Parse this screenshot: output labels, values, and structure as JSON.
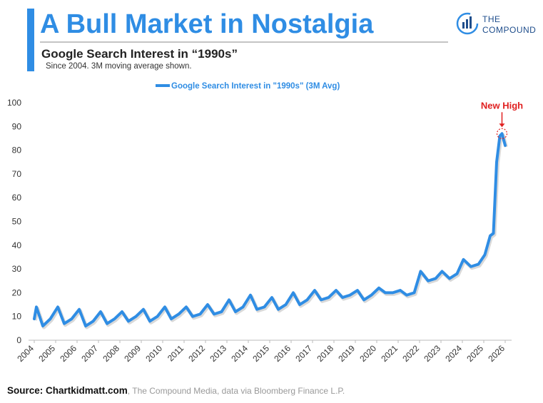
{
  "chart_data": {
    "type": "line",
    "title": "A Bull Market in Nostalgia",
    "subtitle": "Google Search Interest in “1990s”",
    "note": "Since 2004. 3M moving average shown.",
    "annotation": "New High",
    "x": [
      2004.0,
      2004.1,
      2004.4,
      2004.75,
      2005.1,
      2005.4,
      2005.75,
      2006.1,
      2006.4,
      2006.75,
      2007.1,
      2007.4,
      2007.75,
      2008.1,
      2008.4,
      2008.75,
      2009.1,
      2009.4,
      2009.75,
      2010.1,
      2010.4,
      2010.75,
      2011.1,
      2011.4,
      2011.75,
      2012.1,
      2012.4,
      2012.75,
      2013.1,
      2013.4,
      2013.75,
      2014.1,
      2014.4,
      2014.75,
      2015.1,
      2015.4,
      2015.75,
      2016.1,
      2016.4,
      2016.75,
      2017.1,
      2017.4,
      2017.75,
      2018.1,
      2018.4,
      2018.75,
      2019.1,
      2019.4,
      2019.75,
      2020.1,
      2020.4,
      2020.75,
      2021.1,
      2021.4,
      2021.75,
      2022.05,
      2022.4,
      2022.75,
      2023.05,
      2023.4,
      2023.75,
      2024.05,
      2024.4,
      2024.75,
      2025.05,
      2025.3,
      2025.45,
      2025.6,
      2025.75,
      2025.85,
      2026.0
    ],
    "series": [
      {
        "name": "Google Search Interest in \"1990s\" (3M Avg)",
        "color": "#2f8de4",
        "values": [
          9,
          14,
          6,
          9,
          14,
          7,
          9,
          13,
          6,
          8,
          12,
          7,
          9,
          12,
          8,
          10,
          13,
          8,
          10,
          14,
          9,
          11,
          14,
          10,
          11,
          15,
          11,
          12,
          17,
          12,
          14,
          19,
          13,
          14,
          18,
          13,
          15,
          20,
          15,
          17,
          21,
          17,
          18,
          21,
          18,
          19,
          21,
          17,
          19,
          22,
          20,
          20,
          21,
          19,
          20,
          29,
          25,
          26,
          29,
          26,
          28,
          34,
          31,
          32,
          36,
          44,
          45,
          75,
          86,
          87,
          82
        ]
      }
    ],
    "xlim": [
      2003.8,
      2026.3
    ],
    "xticks": [
      {
        "value": 2004,
        "label": "2004"
      },
      {
        "value": 2005,
        "label": "2005"
      },
      {
        "value": 2006,
        "label": "2006"
      },
      {
        "value": 2007,
        "label": "2007"
      },
      {
        "value": 2008,
        "label": "2008"
      },
      {
        "value": 2009,
        "label": "2009"
      },
      {
        "value": 2010,
        "label": "2010"
      },
      {
        "value": 2011,
        "label": "2011"
      },
      {
        "value": 2012,
        "label": "2012"
      },
      {
        "value": 2013,
        "label": "2013"
      },
      {
        "value": 2014,
        "label": "2014"
      },
      {
        "value": 2015,
        "label": "2015"
      },
      {
        "value": 2016,
        "label": "2016"
      },
      {
        "value": 2017,
        "label": "2017"
      },
      {
        "value": 2018,
        "label": "2018"
      },
      {
        "value": 2019,
        "label": "2019"
      },
      {
        "value": 2020,
        "label": "2020"
      },
      {
        "value": 2021,
        "label": "2021"
      },
      {
        "value": 2022,
        "label": "2022"
      },
      {
        "value": 2023,
        "label": "2023"
      },
      {
        "value": 2024,
        "label": "2024"
      },
      {
        "value": 2025,
        "label": "2025"
      },
      {
        "value": 2026,
        "label": "2026"
      }
    ],
    "ylim": [
      0,
      100
    ],
    "yticks": [
      0,
      10,
      20,
      30,
      40,
      50,
      60,
      70,
      80,
      90,
      100
    ],
    "grid": false
  },
  "logo": {
    "line1": "THE",
    "line2": "COMPOUND"
  },
  "source": {
    "main": "Source: Chartkidmatt.com",
    "rest": ", The Compound Media, data via Bloomberg Finance L.P."
  }
}
